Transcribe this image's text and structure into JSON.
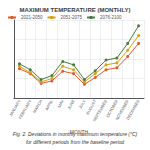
{
  "chart_data": {
    "type": "line",
    "title": "MAXIMUM TEMPERATURE (MONTHLY)",
    "xlabel": "MONTH",
    "categories": [
      "JANUARY",
      "FEBRUARY",
      "MARCH",
      "APRIL",
      "MAY",
      "JUNE",
      "JULY",
      "AUGUST",
      "SEPTEMBER",
      "OCTOBER",
      "NOVEMBER",
      "DECEMBER"
    ],
    "series": [
      {
        "name": "2021-2050",
        "color": "#e05a2b",
        "marker": "circle",
        "values": [
          0.6,
          0.5,
          0.3,
          0.35,
          0.55,
          0.5,
          0.28,
          0.42,
          0.58,
          0.62,
          0.85,
          1.12
        ]
      },
      {
        "name": "2051-2075",
        "color": "#d4a017",
        "marker": "circle",
        "values": [
          0.65,
          0.52,
          0.33,
          0.4,
          0.65,
          0.58,
          0.33,
          0.5,
          0.68,
          0.72,
          0.98,
          1.28
        ]
      },
      {
        "name": "2076-2100",
        "color": "#4a7c3f",
        "marker": "circle",
        "values": [
          0.7,
          0.58,
          0.38,
          0.46,
          0.75,
          0.68,
          0.38,
          0.56,
          0.78,
          0.82,
          1.12,
          1.48
        ]
      }
    ],
    "ylim": [
      0.0,
      1.6
    ],
    "yticks": [
      0.0,
      0.4,
      0.8,
      1.2,
      1.6
    ],
    "tick_labels": "x",
    "grid": true,
    "legend": "upper left",
    "annotations": [
      "Fig. 2. Deviations in monthly maximum temperature (°C)",
      "for different periods from the baseline period"
    ]
  }
}
